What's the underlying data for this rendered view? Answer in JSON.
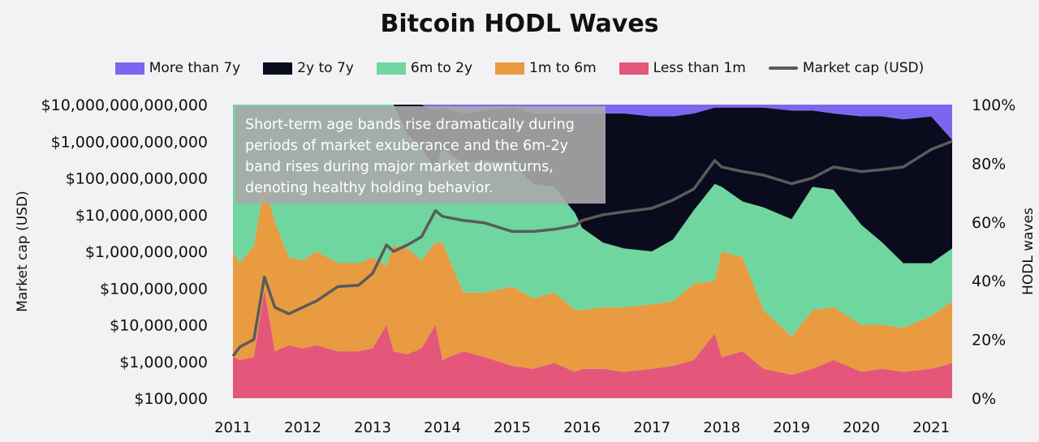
{
  "chart_data": {
    "type": "area",
    "title": "Bitcoin HODL Waves",
    "ylabel_left": "Market cap (USD)",
    "ylabel_right": "HODL waves",
    "left_axis": {
      "scale": "log",
      "range": [
        100000,
        10000000000000
      ],
      "ticks": [
        "$10,000,000,000,000",
        "$1,000,000,000,000",
        "$100,000,000,000",
        "$10,000,000,000",
        "$1,000,000,000",
        "$100,000,000",
        "$10,000,000",
        "$1,000,000",
        "$100,000"
      ]
    },
    "right_axis": {
      "range": [
        0,
        100
      ],
      "ticks": [
        "100%",
        "80%",
        "60%",
        "40%",
        "20%",
        "0%"
      ]
    },
    "x_ticks": [
      "2011",
      "2012",
      "2013",
      "2014",
      "2015",
      "2016",
      "2017",
      "2018",
      "2019",
      "2020",
      "2021"
    ],
    "x_range": [
      2011,
      2021.3
    ],
    "legend_position": "top",
    "annotation": "Short-term age bands rise dramatically during periods of market exuberance and the 6m-2y band rises during major market downturns, denoting healthy holding behavior.",
    "x": [
      2011,
      2011.1,
      2011.3,
      2011.45,
      2011.6,
      2011.8,
      2012,
      2012.2,
      2012.5,
      2012.8,
      2013,
      2013.2,
      2013.3,
      2013.5,
      2013.7,
      2013.9,
      2014,
      2014.3,
      2014.6,
      2015,
      2015.3,
      2015.6,
      2015.9,
      2016,
      2016.3,
      2016.6,
      2017,
      2017.3,
      2017.6,
      2017.9,
      2018,
      2018.3,
      2018.6,
      2019,
      2019.3,
      2019.6,
      2020,
      2020.3,
      2020.6,
      2021,
      2021.3
    ],
    "series": [
      {
        "name": "Less than 1m",
        "color": "#e4577a",
        "values": [
          14,
          13,
          14,
          37,
          16,
          18,
          17,
          18,
          16,
          16,
          17,
          25,
          16,
          15,
          17,
          25,
          13,
          16,
          14,
          11,
          10,
          12,
          9,
          10,
          10,
          9,
          10,
          11,
          13,
          22,
          14,
          16,
          10,
          8,
          10,
          13,
          9,
          10,
          9,
          10,
          12
        ]
      },
      {
        "name": "1m to 6m",
        "color": "#e89b40",
        "values": [
          36,
          33,
          38,
          36,
          44,
          30,
          30,
          32,
          30,
          30,
          31,
          20,
          36,
          36,
          30,
          28,
          40,
          20,
          22,
          27,
          24,
          24,
          21,
          20,
          21,
          22,
          22,
          22,
          26,
          18,
          36,
          32,
          20,
          13,
          20,
          18,
          16,
          15,
          15,
          18,
          21
        ]
      },
      {
        "name": "6m to 2y",
        "color": "#6fd69f",
        "values": [
          50,
          54,
          48,
          27,
          40,
          52,
          53,
          50,
          54,
          54,
          52,
          55,
          48,
          39,
          38,
          25,
          32,
          44,
          45,
          42,
          39,
          36,
          33,
          28,
          22,
          20,
          18,
          21,
          25,
          33,
          22,
          19,
          35,
          40,
          42,
          40,
          34,
          28,
          22,
          18,
          18
        ]
      },
      {
        "name": "2y to 7y",
        "color": "#0b0b1e",
        "values": [
          0,
          0,
          0,
          0,
          0,
          0,
          0,
          0,
          0,
          0,
          0,
          0,
          0,
          10,
          15,
          20,
          14,
          17,
          17,
          19,
          24,
          25,
          34,
          39,
          44,
          46,
          46,
          42,
          33,
          26,
          27,
          32,
          34,
          37,
          26,
          26,
          37,
          43,
          49,
          50,
          37
        ]
      },
      {
        "name": "More than 7y",
        "color": "#7b67ef",
        "values": [
          0,
          0,
          0,
          0,
          0,
          0,
          0,
          0,
          0,
          0,
          0,
          0,
          0,
          0,
          0,
          0,
          1,
          3,
          2,
          1,
          3,
          3,
          3,
          3,
          3,
          3,
          4,
          4,
          3,
          1,
          1,
          1,
          1,
          2,
          2,
          3,
          4,
          4,
          5,
          4,
          12
        ]
      },
      {
        "name": "Market cap (USD)",
        "color": "#5b5b5b",
        "axis": "left",
        "values": [
          1400000,
          2500000,
          4000000,
          200000000,
          30000000,
          20000000,
          30000000,
          45000000,
          110000000,
          120000000,
          250000000,
          1500000000,
          1000000000,
          1500000000,
          2500000000,
          13000000000,
          9000000000,
          7000000000,
          6000000000,
          3500000000,
          3500000000,
          4000000000,
          5000000000,
          7000000000,
          10000000000,
          12000000000,
          15000000000,
          25000000000,
          50000000000,
          300000000000,
          200000000000,
          150000000000,
          120000000000,
          70000000000,
          100000000000,
          200000000000,
          150000000000,
          170000000000,
          200000000000,
          600000000000,
          1000000000000
        ]
      }
    ]
  }
}
